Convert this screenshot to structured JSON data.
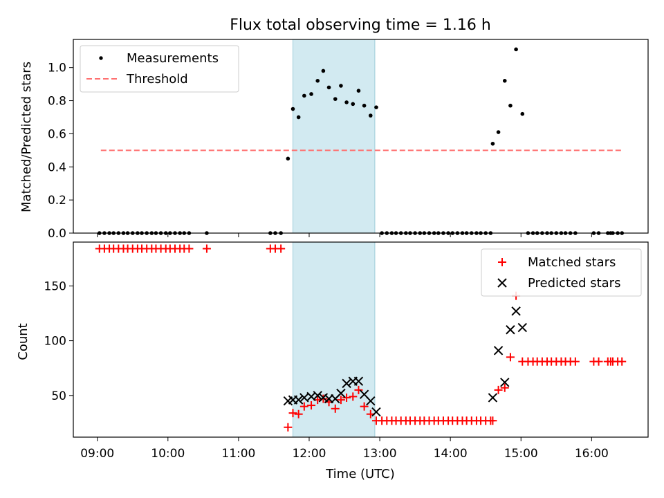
{
  "title": "Flux total observing time = 1.16 h",
  "colors": {
    "shade": "#add8e6",
    "threshold": "#ff7070",
    "matched": "#ff0000",
    "predicted": "#000000",
    "measurement": "#000000"
  },
  "chart_data": [
    {
      "type": "scatter",
      "ylabel": "Matched/Predicted stars",
      "ylim": [
        0,
        1.17
      ],
      "yticks": [
        "0.0",
        "0.2",
        "0.4",
        "0.6",
        "0.8",
        "1.0"
      ],
      "shade_x": [
        11.77,
        12.93
      ],
      "legend": {
        "position": "upper-left",
        "items": [
          "Measurements",
          "Threshold"
        ]
      },
      "threshold": {
        "name": "Threshold",
        "y": 0.5,
        "x": [
          9.05,
          16.45
        ]
      },
      "series": [
        {
          "name": "Measurements",
          "x": [
            9.03,
            9.1,
            9.17,
            9.23,
            9.3,
            9.37,
            9.43,
            9.5,
            9.57,
            9.63,
            9.7,
            9.77,
            9.83,
            9.9,
            9.97,
            10.03,
            10.1,
            10.17,
            10.23,
            10.3,
            10.55,
            11.45,
            11.52,
            11.6,
            11.7,
            11.77,
            11.85,
            11.93,
            12.03,
            12.12,
            12.2,
            12.28,
            12.37,
            12.45,
            12.53,
            12.62,
            12.7,
            12.78,
            12.87,
            12.95,
            13.03,
            13.1,
            13.17,
            13.23,
            13.3,
            13.37,
            13.43,
            13.5,
            13.57,
            13.63,
            13.7,
            13.77,
            13.83,
            13.9,
            13.97,
            14.03,
            14.1,
            14.17,
            14.23,
            14.3,
            14.37,
            14.43,
            14.5,
            14.57,
            14.6,
            14.68,
            14.77,
            14.85,
            14.93,
            15.02,
            15.1,
            15.17,
            15.23,
            15.3,
            15.37,
            15.43,
            15.5,
            15.57,
            15.63,
            15.7,
            15.77,
            16.03,
            16.1,
            16.23,
            16.27,
            16.3,
            16.37,
            16.43
          ],
          "y": [
            0,
            0,
            0,
            0,
            0,
            0,
            0,
            0,
            0,
            0,
            0,
            0,
            0,
            0,
            0,
            0,
            0,
            0,
            0,
            0,
            0,
            0,
            0,
            0,
            0.45,
            0.75,
            0.7,
            0.83,
            0.84,
            0.92,
            0.98,
            0.88,
            0.81,
            0.89,
            0.79,
            0.78,
            0.86,
            0.77,
            0.71,
            0.76,
            0,
            0,
            0,
            0,
            0,
            0,
            0,
            0,
            0,
            0,
            0,
            0,
            0,
            0,
            0,
            0,
            0,
            0,
            0,
            0,
            0,
            0,
            0,
            0,
            0.54,
            0.61,
            0.92,
            0.77,
            1.11,
            0.72,
            0,
            0,
            0,
            0,
            0,
            0,
            0,
            0,
            0,
            0,
            0,
            0,
            0,
            0,
            0,
            0,
            0,
            0
          ]
        }
      ]
    },
    {
      "type": "scatter",
      "xlabel": "Time (UTC)",
      "ylabel": "Count",
      "ylim": [
        12,
        190
      ],
      "yticks": [
        "50",
        "100",
        "150"
      ],
      "xticks": [
        "09:00",
        "10:00",
        "11:00",
        "12:00",
        "13:00",
        "14:00",
        "15:00",
        "16:00"
      ],
      "shade_x": [
        11.77,
        12.93
      ],
      "legend": {
        "position": "upper-right",
        "items": [
          "Matched stars",
          "Predicted stars"
        ]
      },
      "series": [
        {
          "name": "Matched stars",
          "x": [
            9.03,
            9.1,
            9.17,
            9.23,
            9.3,
            9.37,
            9.43,
            9.5,
            9.57,
            9.63,
            9.7,
            9.77,
            9.83,
            9.9,
            9.97,
            10.03,
            10.1,
            10.17,
            10.23,
            10.3,
            10.55,
            11.45,
            11.52,
            11.6,
            11.7,
            11.77,
            11.85,
            11.93,
            12.03,
            12.12,
            12.2,
            12.28,
            12.37,
            12.45,
            12.53,
            12.62,
            12.7,
            12.78,
            12.87,
            12.95,
            13.03,
            13.1,
            13.17,
            13.23,
            13.3,
            13.37,
            13.43,
            13.5,
            13.57,
            13.63,
            13.7,
            13.77,
            13.83,
            13.9,
            13.97,
            14.03,
            14.1,
            14.17,
            14.23,
            14.3,
            14.37,
            14.43,
            14.5,
            14.57,
            14.6,
            14.68,
            14.77,
            14.85,
            14.93,
            15.02,
            15.1,
            15.17,
            15.23,
            15.3,
            15.37,
            15.43,
            15.5,
            15.57,
            15.63,
            15.7,
            15.77,
            16.03,
            16.1,
            16.23,
            16.27,
            16.3,
            16.37,
            16.43
          ],
          "y": [
            184,
            184,
            184,
            184,
            184,
            184,
            184,
            184,
            184,
            184,
            184,
            184,
            184,
            184,
            184,
            184,
            184,
            184,
            184,
            184,
            184,
            184,
            184,
            184,
            21,
            34,
            33,
            40,
            41,
            46,
            47,
            44,
            38,
            46,
            48,
            49,
            55,
            40,
            33,
            27,
            27,
            27,
            27,
            27,
            27,
            27,
            27,
            27,
            27,
            27,
            27,
            27,
            27,
            27,
            27,
            27,
            27,
            27,
            27,
            27,
            27,
            27,
            27,
            27,
            27,
            55,
            57,
            85,
            141,
            81,
            81,
            81,
            81,
            81,
            81,
            81,
            81,
            81,
            81,
            81,
            81,
            81,
            81,
            81,
            81,
            81,
            81,
            81
          ]
        },
        {
          "name": "Predicted stars",
          "x": [
            11.7,
            11.77,
            11.85,
            11.93,
            12.03,
            12.12,
            12.2,
            12.28,
            12.37,
            12.45,
            12.53,
            12.62,
            12.7,
            12.78,
            12.87,
            12.95,
            14.6,
            14.68,
            14.77,
            14.85,
            14.93,
            15.02
          ],
          "y": [
            45,
            46,
            46,
            48,
            49,
            50,
            48,
            47,
            47,
            52,
            61,
            63,
            63,
            51,
            45,
            35,
            48,
            91,
            62,
            110,
            127,
            112
          ]
        }
      ]
    }
  ]
}
